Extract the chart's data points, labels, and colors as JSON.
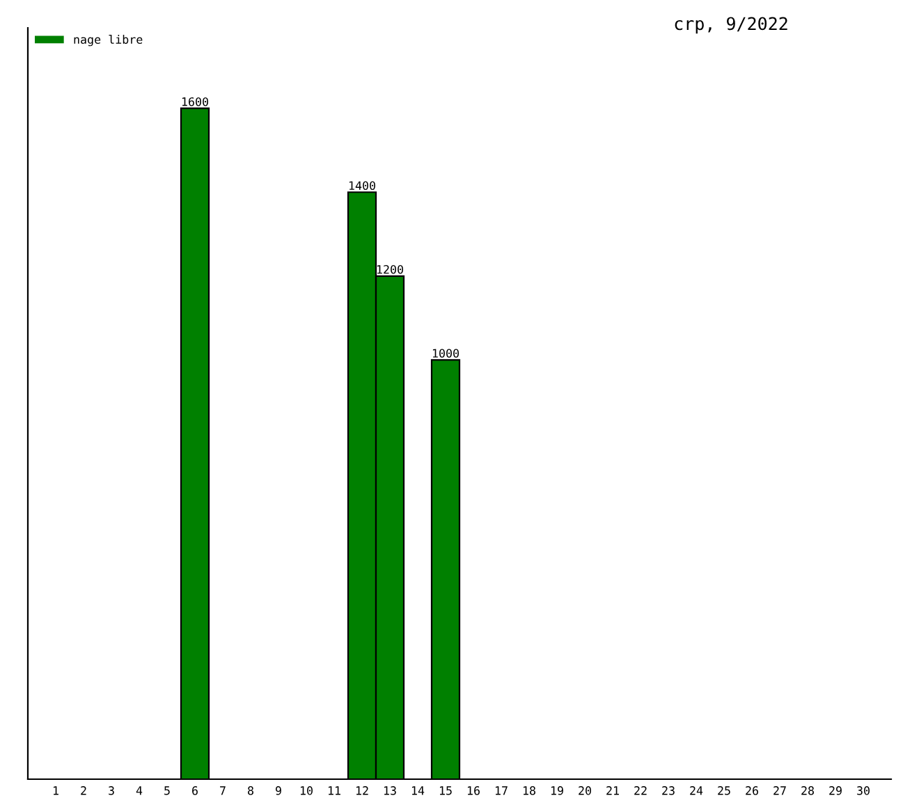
{
  "chart_data": {
    "type": "bar",
    "title": "crp, 9/2022",
    "categories": [
      "1",
      "2",
      "3",
      "4",
      "5",
      "6",
      "7",
      "8",
      "9",
      "10",
      "11",
      "12",
      "13",
      "14",
      "15",
      "16",
      "17",
      "18",
      "19",
      "20",
      "21",
      "22",
      "23",
      "24",
      "25",
      "26",
      "27",
      "28",
      "29",
      "30"
    ],
    "series": [
      {
        "name": "nage libre",
        "color": "#008000",
        "values": [
          null,
          null,
          null,
          null,
          null,
          1600,
          null,
          null,
          null,
          null,
          null,
          1400,
          1200,
          null,
          1000,
          null,
          null,
          null,
          null,
          null,
          null,
          null,
          null,
          null,
          null,
          null,
          null,
          null,
          null,
          null
        ]
      }
    ],
    "data_labels": true,
    "legend": "top left",
    "grid": false
  }
}
